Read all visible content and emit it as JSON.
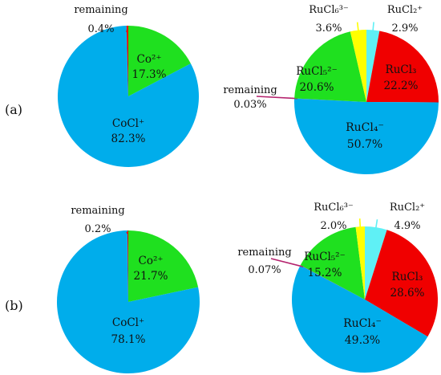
{
  "panels": [
    {
      "label": "(a)"
    },
    {
      "label": "(b)"
    }
  ],
  "chart_data": [
    {
      "type": "pie",
      "panel": "(a)",
      "slices": [
        {
          "name": "Co²⁺",
          "value": 17.3,
          "value_label": "17.3%",
          "color": "#1fe01f"
        },
        {
          "name": "CoCl⁺",
          "value": 82.3,
          "value_label": "82.3%",
          "color": "#00adeb"
        },
        {
          "name": "remaining",
          "value": 0.4,
          "value_label": "0.4%",
          "color": "#f00000"
        }
      ]
    },
    {
      "type": "pie",
      "panel": "(a)",
      "slices": [
        {
          "name": "RuCl₂⁺",
          "value": 2.9,
          "value_label": "2.9%",
          "color": "#5ff0f5"
        },
        {
          "name": "RuCl₃",
          "value": 22.2,
          "value_label": "22.2%",
          "color": "#f00000"
        },
        {
          "name": "RuCl₄⁻",
          "value": 50.7,
          "value_label": "50.7%",
          "color": "#00adeb"
        },
        {
          "name": "remaining",
          "value": 0.03,
          "value_label": "0.03%",
          "color": "#b5236e"
        },
        {
          "name": "RuCl₅²⁻",
          "value": 20.6,
          "value_label": "20.6%",
          "color": "#1fe01f"
        },
        {
          "name": "RuCl₆³⁻",
          "value": 3.6,
          "value_label": "3.6%",
          "color": "#ffff00"
        }
      ]
    },
    {
      "type": "pie",
      "panel": "(b)",
      "slices": [
        {
          "name": "Co²⁺",
          "value": 21.7,
          "value_label": "21.7%",
          "color": "#1fe01f"
        },
        {
          "name": "CoCl⁺",
          "value": 78.1,
          "value_label": "78.1%",
          "color": "#00adeb"
        },
        {
          "name": "remaining",
          "value": 0.2,
          "value_label": "0.2%",
          "color": "#f00000"
        }
      ]
    },
    {
      "type": "pie",
      "panel": "(b)",
      "slices": [
        {
          "name": "RuCl₂⁺",
          "value": 4.9,
          "value_label": "4.9%",
          "color": "#5ff0f5"
        },
        {
          "name": "RuCl₃",
          "value": 28.6,
          "value_label": "28.6%",
          "color": "#f00000"
        },
        {
          "name": "RuCl₄⁻",
          "value": 49.3,
          "value_label": "49.3%",
          "color": "#00adeb"
        },
        {
          "name": "remaining",
          "value": 0.07,
          "value_label": "0.07%",
          "color": "#b5236e"
        },
        {
          "name": "RuCl₅²⁻",
          "value": 15.2,
          "value_label": "15.2%",
          "color": "#1fe01f"
        },
        {
          "name": "RuCl₆³⁻",
          "value": 2.0,
          "value_label": "2.0%",
          "color": "#ffff00"
        }
      ]
    }
  ]
}
